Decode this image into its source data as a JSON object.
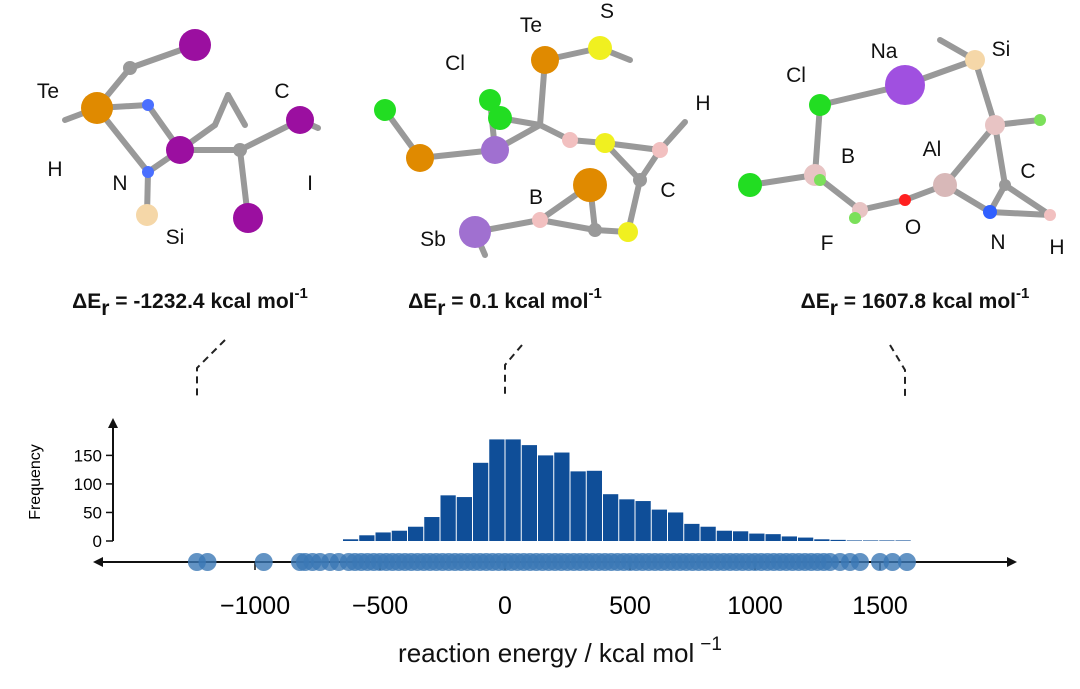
{
  "chart_data": {
    "type": "histogram",
    "x_label": {
      "text": "reaction energy / kcal mol",
      "superscript": "−1"
    },
    "y_label": "Frequency",
    "bins": [
      -650,
      -585,
      -520,
      -455,
      -390,
      -325,
      -260,
      -195,
      -130,
      -65,
      0,
      65,
      130,
      195,
      260,
      325,
      390,
      455,
      520,
      585,
      650,
      715,
      780,
      845,
      910,
      975,
      1040,
      1105,
      1170,
      1235,
      1300,
      1365,
      1430,
      1495,
      1560,
      1625
    ],
    "values": [
      3,
      10,
      15,
      18,
      25,
      42,
      80,
      77,
      137,
      178,
      178,
      168,
      150,
      155,
      122,
      123,
      82,
      73,
      70,
      55,
      50,
      30,
      25,
      18,
      17,
      13,
      12,
      8,
      6,
      3,
      2,
      1,
      1,
      1,
      1
    ],
    "color": "#0f4e98",
    "rug": {
      "color": "#3b78b5",
      "x": [
        -1232.4,
        -1190,
        -965,
        -820,
        -800,
        -770,
        -740,
        -700,
        -665,
        -625,
        -600,
        -575,
        -550,
        -525,
        -500,
        -475,
        -450,
        -425,
        -400,
        -375,
        -350,
        -325,
        -300,
        -275,
        -250,
        -225,
        -200,
        -175,
        -150,
        -125,
        -100,
        -75,
        -50,
        -25,
        0.1,
        25,
        50,
        75,
        100,
        125,
        150,
        175,
        200,
        225,
        250,
        275,
        300,
        325,
        350,
        375,
        400,
        425,
        450,
        475,
        500,
        525,
        550,
        575,
        600,
        625,
        650,
        675,
        700,
        725,
        750,
        775,
        800,
        825,
        850,
        875,
        900,
        925,
        950,
        975,
        1000,
        1025,
        1050,
        1075,
        1100,
        1125,
        1150,
        1175,
        1200,
        1225,
        1250,
        1275,
        1300,
        1340,
        1380,
        1420,
        1500,
        1550,
        1607.8
      ]
    },
    "xlim": [
      -1640,
      2040
    ],
    "ylim": [
      0,
      212
    ],
    "xticks": [
      {
        "value": -1000,
        "label": "−1000"
      },
      {
        "value": -500,
        "label": "−500"
      },
      0,
      500,
      1000,
      1500
    ],
    "yticks": [
      0,
      50,
      100,
      150
    ]
  },
  "molecules": [
    {
      "atoms": [
        "Te",
        "H",
        "N",
        "Si",
        "C",
        "I"
      ],
      "energy": {
        "symbol": "ΔE",
        "subscript": "r",
        "text": " = -1232.4 kcal mol",
        "superscript": "-1"
      }
    },
    {
      "atoms": [
        "Te",
        "S",
        "Cl",
        "H",
        "C",
        "B",
        "Sb"
      ],
      "energy": {
        "symbol": "ΔE",
        "subscript": "r",
        "text": " = 0.1 kcal mol",
        "superscript": "-1"
      }
    },
    {
      "atoms": [
        "Cl",
        "Na",
        "Si",
        "B",
        "Al",
        "C",
        "O",
        "F",
        "N",
        "H"
      ],
      "energy": {
        "symbol": "ΔE",
        "subscript": "r",
        "text": " = 1607.8 kcal mol",
        "superscript": "-1"
      }
    }
  ]
}
